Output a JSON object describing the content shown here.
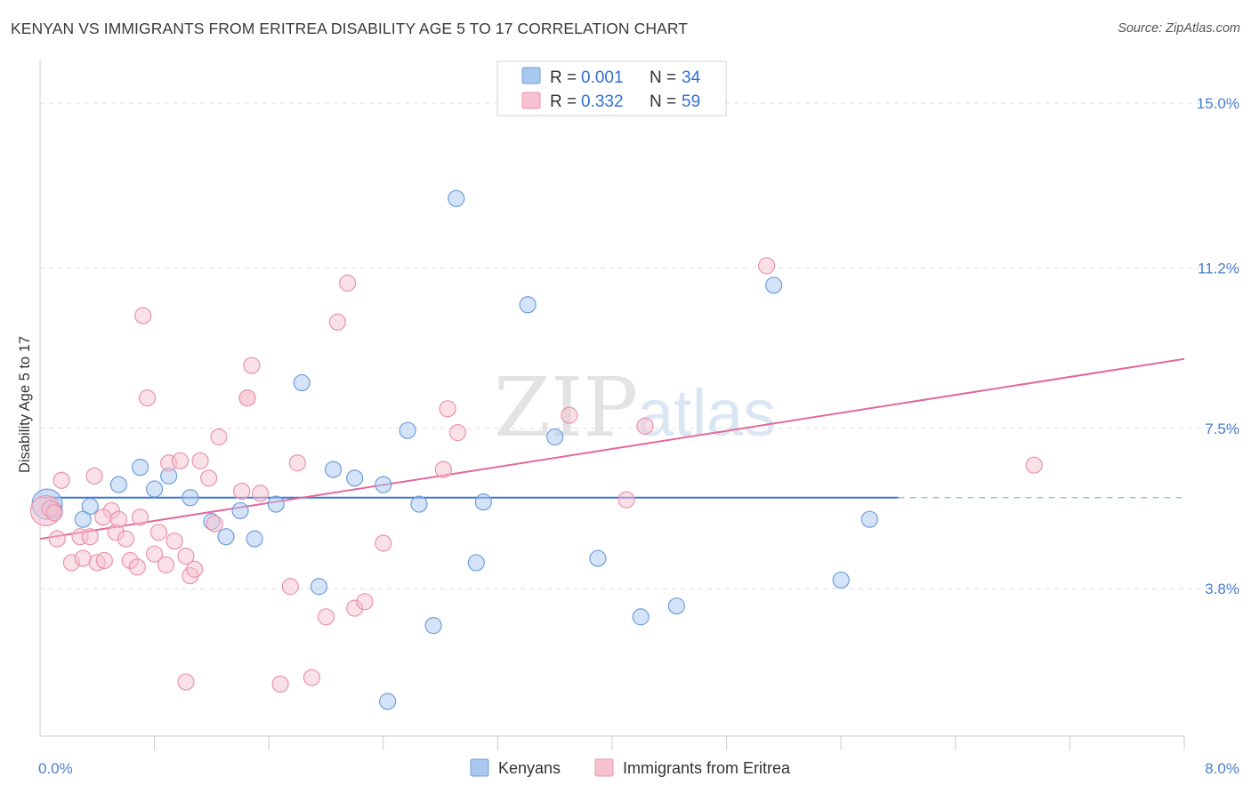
{
  "title": "KENYAN VS IMMIGRANTS FROM ERITREA DISABILITY AGE 5 TO 17 CORRELATION CHART",
  "source": "Source: ZipAtlas.com",
  "colors": {
    "blue_fill": "#a9c8f0",
    "blue_stroke": "#6f9fdc",
    "blue_line": "#3a74d4",
    "pink_fill": "#f6c1d0",
    "pink_stroke": "#ea93ad",
    "pink_line": "#e3699a",
    "grid": "#dddddd",
    "axis_text": "#4a7fd0"
  },
  "legend": {
    "r_label": "R =",
    "n_label": "N =",
    "rows": [
      {
        "series": "Kenyans",
        "r": "0.001",
        "n": "34"
      },
      {
        "series": "Immigrants from Eritrea",
        "r": "0.332",
        "n": "59"
      }
    ]
  },
  "chart_data": {
    "type": "scatter",
    "title": "KENYAN VS IMMIGRANTS FROM ERITREA DISABILITY AGE 5 TO 17 CORRELATION CHART",
    "xlabel": "",
    "ylabel": "Disability Age 5 to 17",
    "xlim": [
      0.0,
      8.0
    ],
    "ylim": [
      0.4,
      15.8
    ],
    "x_tick_labels": [
      {
        "value": 0.0,
        "label": "0.0%"
      },
      {
        "value": 8.0,
        "label": "8.0%"
      }
    ],
    "y_tick_labels": [
      {
        "value": 3.8,
        "label": "3.8%"
      },
      {
        "value": 7.5,
        "label": "7.5%"
      },
      {
        "value": 11.2,
        "label": "11.2%"
      },
      {
        "value": 15.0,
        "label": "15.0%"
      }
    ],
    "y_gridlines": [
      3.8,
      7.5,
      11.2,
      15.0
    ],
    "legend_position": "top-center",
    "watermark": "ZIPatlas",
    "series": [
      {
        "name": "Kenyans",
        "color": "#a9c8f0",
        "trend": {
          "x0": 0.0,
          "y0": 5.9,
          "x1": 6.0,
          "y1": 5.9,
          "dashed_to": 8.0
        },
        "points": [
          {
            "x": 0.05,
            "y": 5.75,
            "big": true
          },
          {
            "x": 0.1,
            "y": 5.6
          },
          {
            "x": 0.35,
            "y": 5.7
          },
          {
            "x": 0.3,
            "y": 5.4
          },
          {
            "x": 0.55,
            "y": 6.2
          },
          {
            "x": 0.7,
            "y": 6.6
          },
          {
            "x": 0.8,
            "y": 6.1
          },
          {
            "x": 0.9,
            "y": 6.4
          },
          {
            "x": 1.05,
            "y": 5.9
          },
          {
            "x": 1.2,
            "y": 5.35
          },
          {
            "x": 1.3,
            "y": 5.0
          },
          {
            "x": 1.4,
            "y": 5.6
          },
          {
            "x": 1.5,
            "y": 4.95
          },
          {
            "x": 1.65,
            "y": 5.75
          },
          {
            "x": 1.83,
            "y": 8.55
          },
          {
            "x": 1.95,
            "y": 3.85
          },
          {
            "x": 2.05,
            "y": 6.55
          },
          {
            "x": 2.2,
            "y": 6.35
          },
          {
            "x": 2.4,
            "y": 6.2
          },
          {
            "x": 2.57,
            "y": 7.45
          },
          {
            "x": 2.65,
            "y": 5.75
          },
          {
            "x": 2.75,
            "y": 2.95
          },
          {
            "x": 2.91,
            "y": 12.8
          },
          {
            "x": 3.05,
            "y": 4.4
          },
          {
            "x": 3.1,
            "y": 5.8
          },
          {
            "x": 3.41,
            "y": 10.35
          },
          {
            "x": 3.6,
            "y": 7.3
          },
          {
            "x": 3.9,
            "y": 4.5
          },
          {
            "x": 4.2,
            "y": 3.15
          },
          {
            "x": 4.45,
            "y": 3.4
          },
          {
            "x": 5.13,
            "y": 10.8
          },
          {
            "x": 5.6,
            "y": 4.0
          },
          {
            "x": 5.8,
            "y": 5.4
          },
          {
            "x": 2.43,
            "y": 1.2
          }
        ]
      },
      {
        "name": "Immigrants from Eritrea",
        "color": "#f6c1d0",
        "trend": {
          "x0": 0.0,
          "y0": 4.95,
          "x1": 8.0,
          "y1": 9.1
        },
        "points": [
          {
            "x": 0.04,
            "y": 5.6,
            "big": true
          },
          {
            "x": 0.15,
            "y": 6.3
          },
          {
            "x": 0.12,
            "y": 4.95
          },
          {
            "x": 0.22,
            "y": 4.4
          },
          {
            "x": 0.3,
            "y": 4.5
          },
          {
            "x": 0.28,
            "y": 5.0
          },
          {
            "x": 0.35,
            "y": 5.0
          },
          {
            "x": 0.38,
            "y": 6.4
          },
          {
            "x": 0.4,
            "y": 4.4
          },
          {
            "x": 0.45,
            "y": 4.45
          },
          {
            "x": 0.5,
            "y": 5.6
          },
          {
            "x": 0.53,
            "y": 5.1
          },
          {
            "x": 0.55,
            "y": 5.4
          },
          {
            "x": 0.6,
            "y": 4.95
          },
          {
            "x": 0.63,
            "y": 4.45
          },
          {
            "x": 0.68,
            "y": 4.3
          },
          {
            "x": 0.7,
            "y": 5.45
          },
          {
            "x": 0.72,
            "y": 10.1
          },
          {
            "x": 0.75,
            "y": 8.2
          },
          {
            "x": 0.8,
            "y": 4.6
          },
          {
            "x": 0.83,
            "y": 5.1
          },
          {
            "x": 0.88,
            "y": 4.35
          },
          {
            "x": 0.9,
            "y": 6.7
          },
          {
            "x": 0.94,
            "y": 4.9
          },
          {
            "x": 0.98,
            "y": 6.75
          },
          {
            "x": 1.02,
            "y": 4.55
          },
          {
            "x": 1.05,
            "y": 4.1
          },
          {
            "x": 1.08,
            "y": 4.25
          },
          {
            "x": 1.12,
            "y": 6.75
          },
          {
            "x": 1.18,
            "y": 6.35
          },
          {
            "x": 1.22,
            "y": 5.3
          },
          {
            "x": 1.25,
            "y": 7.3
          },
          {
            "x": 1.41,
            "y": 6.05
          },
          {
            "x": 1.45,
            "y": 8.2
          },
          {
            "x": 1.48,
            "y": 8.95
          },
          {
            "x": 1.54,
            "y": 6.0
          },
          {
            "x": 1.68,
            "y": 1.6
          },
          {
            "x": 1.75,
            "y": 3.85
          },
          {
            "x": 1.8,
            "y": 6.7
          },
          {
            "x": 1.9,
            "y": 1.75
          },
          {
            "x": 2.0,
            "y": 3.15
          },
          {
            "x": 2.08,
            "y": 9.95
          },
          {
            "x": 2.15,
            "y": 10.85
          },
          {
            "x": 2.2,
            "y": 3.35
          },
          {
            "x": 2.27,
            "y": 3.5
          },
          {
            "x": 2.4,
            "y": 4.85
          },
          {
            "x": 2.82,
            "y": 6.55
          },
          {
            "x": 2.85,
            "y": 7.95
          },
          {
            "x": 2.92,
            "y": 7.4
          },
          {
            "x": 3.7,
            "y": 7.8
          },
          {
            "x": 4.1,
            "y": 5.85
          },
          {
            "x": 4.23,
            "y": 7.55
          },
          {
            "x": 5.08,
            "y": 11.25
          },
          {
            "x": 6.95,
            "y": 6.65
          },
          {
            "x": 1.02,
            "y": 1.65
          },
          {
            "x": 0.07,
            "y": 5.65
          },
          {
            "x": 0.1,
            "y": 5.55
          },
          {
            "x": 0.44,
            "y": 5.45
          },
          {
            "x": 1.45,
            "y": 8.2
          }
        ]
      }
    ]
  }
}
